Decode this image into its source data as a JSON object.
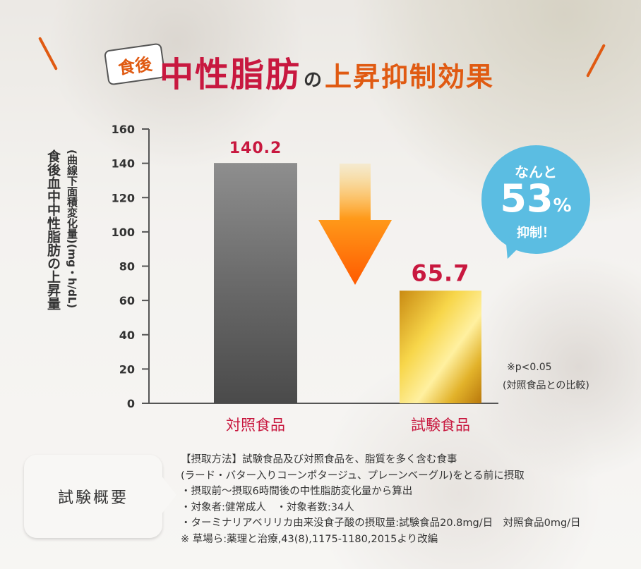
{
  "title": {
    "bubble": "食後",
    "main": "中性脂肪",
    "particle": "の",
    "suffix": "上昇抑制効果"
  },
  "colors": {
    "accent_red": "#c8183f",
    "accent_orange": "#e05a12",
    "bubble_blue": "#5bbde2",
    "control_bar": "#7a7a7a",
    "test_bar": "#d9a51a"
  },
  "ylabel_main": "食後血中中性脂肪の上昇量",
  "ylabel_sub": "(曲線下面積変化量)(mg・h/dL)",
  "badge": {
    "top": "なんと",
    "percent": "53",
    "percent_sign": "%",
    "bottom": "抑制！"
  },
  "footnote": {
    "line1": "※p<0.05",
    "line2": "(対照食品との比較)"
  },
  "summary_label": "試験概要",
  "details": [
    "【摂取方法】試験食品及び対照食品を、脂質を多く含む食事",
    "(ラード・バター入りコーンポタージュ、プレーンベーグル)をとる前に摂取",
    "・摂取前～摂取6時間後の中性脂肪変化量から算出",
    "・対象者:健常成人　・対象者数:34人",
    "・ターミナリアベリリカ由来没食子酸の摂取量:試験食品20.8mg/日　対照食品0mg/日",
    " ※ 草場ら:薬理と治療,43(8),1175-1180,2015より改編"
  ],
  "chart_data": {
    "type": "bar",
    "categories": [
      "対照食品",
      "試験食品"
    ],
    "values": [
      140.2,
      65.7
    ],
    "value_labels": [
      "140.2",
      "65.7"
    ],
    "ylim": [
      0,
      160
    ],
    "yticks": [
      0,
      20,
      40,
      60,
      80,
      100,
      120,
      140,
      160
    ],
    "ylabel": "食後血中中性脂肪の上昇量 (曲線下面積変化量)(mg・h/dL)",
    "grid": false,
    "annotation": "down-arrow between bars"
  }
}
